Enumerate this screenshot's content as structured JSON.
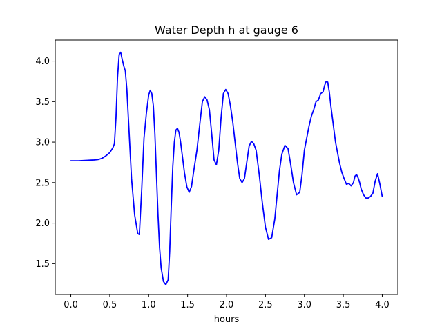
{
  "chart_data": {
    "type": "line",
    "title": "Water Depth h at gauge 6",
    "xlabel": "hours",
    "ylabel": "",
    "xlim": [
      -0.2,
      4.2
    ],
    "ylim": [
      1.12,
      4.26
    ],
    "xticks": [
      0.0,
      0.5,
      1.0,
      1.5,
      2.0,
      2.5,
      3.0,
      3.5,
      4.0
    ],
    "xtick_labels": [
      "0.0",
      "0.5",
      "1.0",
      "1.5",
      "2.0",
      "2.5",
      "3.0",
      "3.5",
      "4.0"
    ],
    "yticks": [
      1.5,
      2.0,
      2.5,
      3.0,
      3.5,
      4.0
    ],
    "ytick_labels": [
      "1.5",
      "2.0",
      "2.5",
      "3.0",
      "3.5",
      "4.0"
    ],
    "grid": false,
    "legend": false,
    "series": [
      {
        "color": "#0000ff",
        "x": [
          0.0,
          0.1,
          0.2,
          0.3,
          0.35,
          0.4,
          0.45,
          0.5,
          0.54,
          0.56,
          0.58,
          0.6,
          0.62,
          0.64,
          0.66,
          0.68,
          0.7,
          0.72,
          0.75,
          0.78,
          0.82,
          0.86,
          0.88,
          0.91,
          0.94,
          0.97,
          1.0,
          1.02,
          1.04,
          1.06,
          1.08,
          1.1,
          1.12,
          1.14,
          1.16,
          1.19,
          1.22,
          1.25,
          1.27,
          1.29,
          1.31,
          1.33,
          1.35,
          1.37,
          1.39,
          1.41,
          1.43,
          1.46,
          1.49,
          1.52,
          1.55,
          1.58,
          1.62,
          1.66,
          1.69,
          1.72,
          1.75,
          1.78,
          1.81,
          1.84,
          1.87,
          1.9,
          1.93,
          1.96,
          1.99,
          2.02,
          2.05,
          2.08,
          2.11,
          2.14,
          2.17,
          2.2,
          2.23,
          2.26,
          2.29,
          2.32,
          2.35,
          2.38,
          2.42,
          2.46,
          2.5,
          2.54,
          2.58,
          2.62,
          2.65,
          2.68,
          2.71,
          2.75,
          2.79,
          2.82,
          2.86,
          2.9,
          2.94,
          2.97,
          3.0,
          3.03,
          3.06,
          3.09,
          3.12,
          3.15,
          3.18,
          3.21,
          3.24,
          3.26,
          3.28,
          3.3,
          3.32,
          3.34,
          3.36,
          3.38,
          3.4,
          3.42,
          3.45,
          3.48,
          3.51,
          3.54,
          3.57,
          3.6,
          3.63,
          3.65,
          3.67,
          3.69,
          3.71,
          3.73,
          3.76,
          3.79,
          3.82,
          3.85,
          3.88,
          3.91,
          3.94,
          3.97,
          4.0
        ],
        "y": [
          2.77,
          2.77,
          2.775,
          2.78,
          2.785,
          2.8,
          2.83,
          2.87,
          2.93,
          2.98,
          3.3,
          3.8,
          4.07,
          4.11,
          4.02,
          3.94,
          3.88,
          3.65,
          3.1,
          2.55,
          2.1,
          1.87,
          1.86,
          2.4,
          3.05,
          3.35,
          3.58,
          3.64,
          3.6,
          3.45,
          3.1,
          2.6,
          2.1,
          1.7,
          1.45,
          1.28,
          1.24,
          1.3,
          1.65,
          2.2,
          2.7,
          3.0,
          3.15,
          3.17,
          3.12,
          3.0,
          2.85,
          2.62,
          2.45,
          2.38,
          2.45,
          2.65,
          2.9,
          3.25,
          3.5,
          3.56,
          3.52,
          3.4,
          3.1,
          2.78,
          2.72,
          2.9,
          3.3,
          3.6,
          3.65,
          3.6,
          3.45,
          3.25,
          3.0,
          2.75,
          2.55,
          2.5,
          2.55,
          2.75,
          2.95,
          3.01,
          2.98,
          2.9,
          2.6,
          2.25,
          1.95,
          1.8,
          1.82,
          2.05,
          2.35,
          2.65,
          2.85,
          2.96,
          2.92,
          2.75,
          2.5,
          2.35,
          2.38,
          2.6,
          2.9,
          3.05,
          3.2,
          3.32,
          3.4,
          3.5,
          3.52,
          3.6,
          3.62,
          3.7,
          3.75,
          3.74,
          3.62,
          3.45,
          3.3,
          3.15,
          3.0,
          2.9,
          2.75,
          2.63,
          2.55,
          2.48,
          2.49,
          2.46,
          2.5,
          2.58,
          2.6,
          2.56,
          2.5,
          2.42,
          2.35,
          2.31,
          2.31,
          2.33,
          2.37,
          2.52,
          2.61,
          2.48,
          2.33
        ]
      }
    ]
  }
}
